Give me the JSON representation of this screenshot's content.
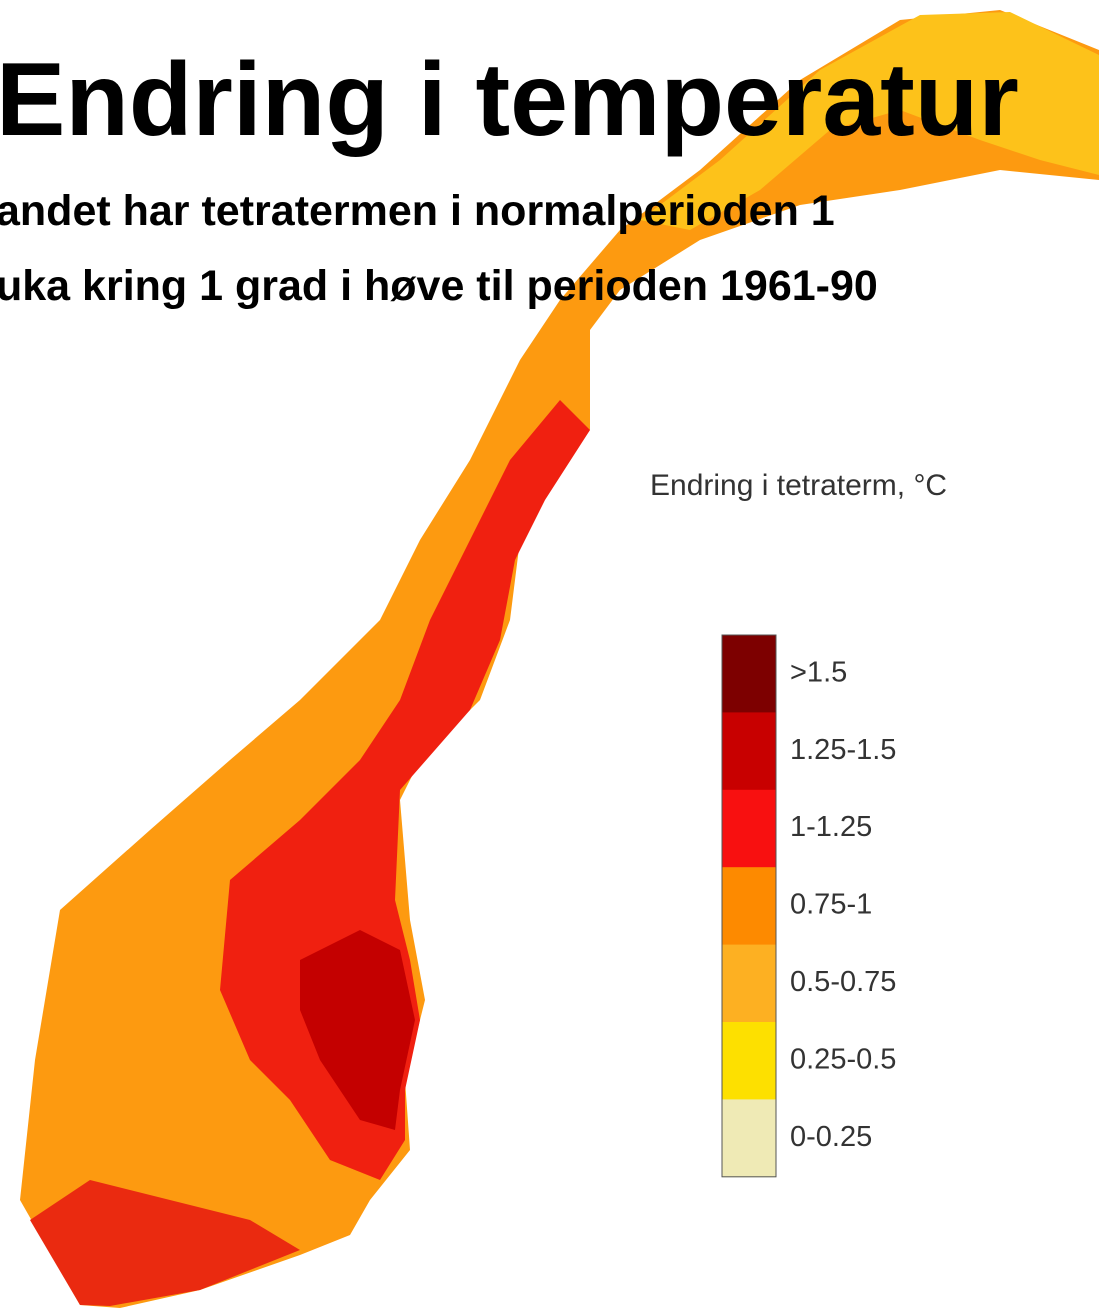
{
  "header": {
    "title": "Endring i temperatur",
    "subtitle_lines": [
      "andet har tetratermen i normalperioden 1",
      "uka kring 1 grad i høve til perioden 1961-90"
    ]
  },
  "legend": {
    "title": "Endring i tetraterm, °C",
    "items": [
      {
        "label": ">1.5",
        "color": "#7d0000"
      },
      {
        "label": "1.25-1.5",
        "color": "#c80000"
      },
      {
        "label": "1-1.25",
        "color": "#f81010"
      },
      {
        "label": "0.75-1",
        "color": "#fd8a00"
      },
      {
        "label": "0.5-0.75",
        "color": "#fdb022"
      },
      {
        "label": "0.25-0.5",
        "color": "#fde000"
      },
      {
        "label": "0-0.25",
        "color": "#efeab5"
      }
    ]
  }
}
